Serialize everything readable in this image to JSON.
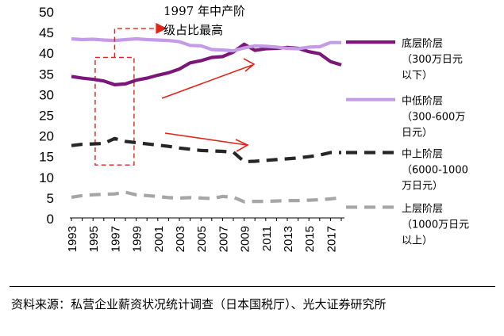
{
  "chart_data": {
    "type": "line",
    "title": "",
    "xlabel": "",
    "ylabel": "",
    "ylim": [
      0,
      50
    ],
    "yticks": [
      "0",
      "5",
      "10",
      "15",
      "20",
      "25",
      "30",
      "35",
      "40",
      "45",
      "50"
    ],
    "xticks": [
      "1993",
      "1995",
      "1997",
      "1999",
      "2001",
      "2003",
      "2005",
      "2007",
      "2009",
      "2011",
      "2013",
      "2015",
      "2017"
    ],
    "x": [
      1993,
      1994,
      1995,
      1996,
      1997,
      1998,
      1999,
      2000,
      2001,
      2002,
      2003,
      2004,
      2005,
      2006,
      2007,
      2008,
      2009,
      2010,
      2011,
      2012,
      2013,
      2014,
      2015,
      2016,
      2017,
      2018
    ],
    "series": [
      {
        "name": "底层阶层",
        "legend": [
          "底层阶层",
          "（300万日元",
          "以下）"
        ],
        "color": "#7b1778",
        "dash": "solid",
        "values": [
          34.2,
          33.8,
          33.5,
          33.1,
          32.2,
          32.4,
          33.3,
          33.8,
          34.5,
          35.1,
          36.0,
          37.5,
          38.0,
          38.8,
          39.0,
          40.1,
          42.0,
          40.5,
          40.9,
          41.0,
          41.2,
          41.0,
          40.2,
          39.7,
          37.8,
          37.0
        ]
      },
      {
        "name": "中低阶层",
        "legend": [
          "中低阶层",
          "（300-600万",
          "日元）"
        ],
        "color": "#c39be6",
        "dash": "solid",
        "values": [
          43.3,
          43.1,
          43.2,
          43.0,
          42.9,
          43.1,
          43.3,
          43.1,
          43.0,
          42.9,
          42.6,
          41.7,
          41.6,
          40.7,
          40.6,
          40.4,
          41.1,
          41.6,
          41.5,
          41.3,
          41.0,
          40.9,
          41.3,
          41.4,
          42.4,
          42.4
        ]
      },
      {
        "name": "中上阶层",
        "legend": [
          "中上阶层",
          "（6000-1000",
          "万日元）"
        ],
        "color": "#262626",
        "dash": "dashed",
        "values": [
          17.5,
          17.8,
          17.9,
          18.0,
          19.2,
          18.5,
          18.2,
          17.9,
          17.6,
          17.3,
          16.9,
          16.6,
          16.3,
          16.2,
          16.1,
          15.9,
          13.6,
          13.7,
          13.9,
          14.1,
          14.3,
          14.5,
          14.8,
          15.2,
          15.8,
          15.8
        ]
      },
      {
        "name": "上层阶层",
        "legend": [
          "上层阶层",
          "（1000万日元",
          "以上）"
        ],
        "color": "#a6a6a6",
        "dash": "dashed",
        "values": [
          5.0,
          5.4,
          5.6,
          5.7,
          5.8,
          6.2,
          5.6,
          5.4,
          5.2,
          4.9,
          4.8,
          4.9,
          4.8,
          4.7,
          5.2,
          5.0,
          3.9,
          4.0,
          4.0,
          4.1,
          4.2,
          4.2,
          4.3,
          4.4,
          4.6,
          4.9
        ]
      }
    ],
    "annotations": [
      {
        "text_lines": [
          "1997 年中产阶",
          "级占比最高"
        ]
      }
    ]
  },
  "source": "资料来源：私营企业薪资状况统计调查（日本国税厅）、光大证券研究所",
  "colors": {
    "highlight_red": "#e2231a"
  }
}
